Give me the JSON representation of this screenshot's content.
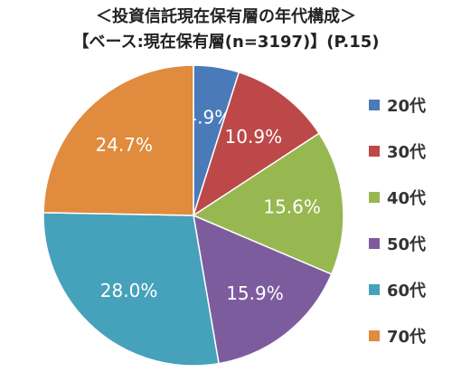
{
  "title_line1": "＜投資信託現在保有層の年代構成＞",
  "title_line2": "【ベース:現在保有層(n=3197)】(P.15)",
  "chart_data": {
    "type": "pie",
    "title": "＜投資信託現在保有層の年代構成＞",
    "subtitle": "【ベース:現在保有層(n=3197)】(P.15)",
    "categories": [
      "20代",
      "30代",
      "40代",
      "50代",
      "60代",
      "70代"
    ],
    "values": [
      4.9,
      10.9,
      15.6,
      15.9,
      28.0,
      24.7
    ],
    "value_labels": [
      "4.9%",
      "10.9%",
      "15.6%",
      "15.9%",
      "28.0%",
      "24.7%"
    ],
    "colors": [
      "#4a7ab8",
      "#bd4848",
      "#97b851",
      "#7d5c9e",
      "#46a1bb",
      "#e08b3d"
    ],
    "legend_position": "right",
    "start_angle": "top, clockwise"
  }
}
